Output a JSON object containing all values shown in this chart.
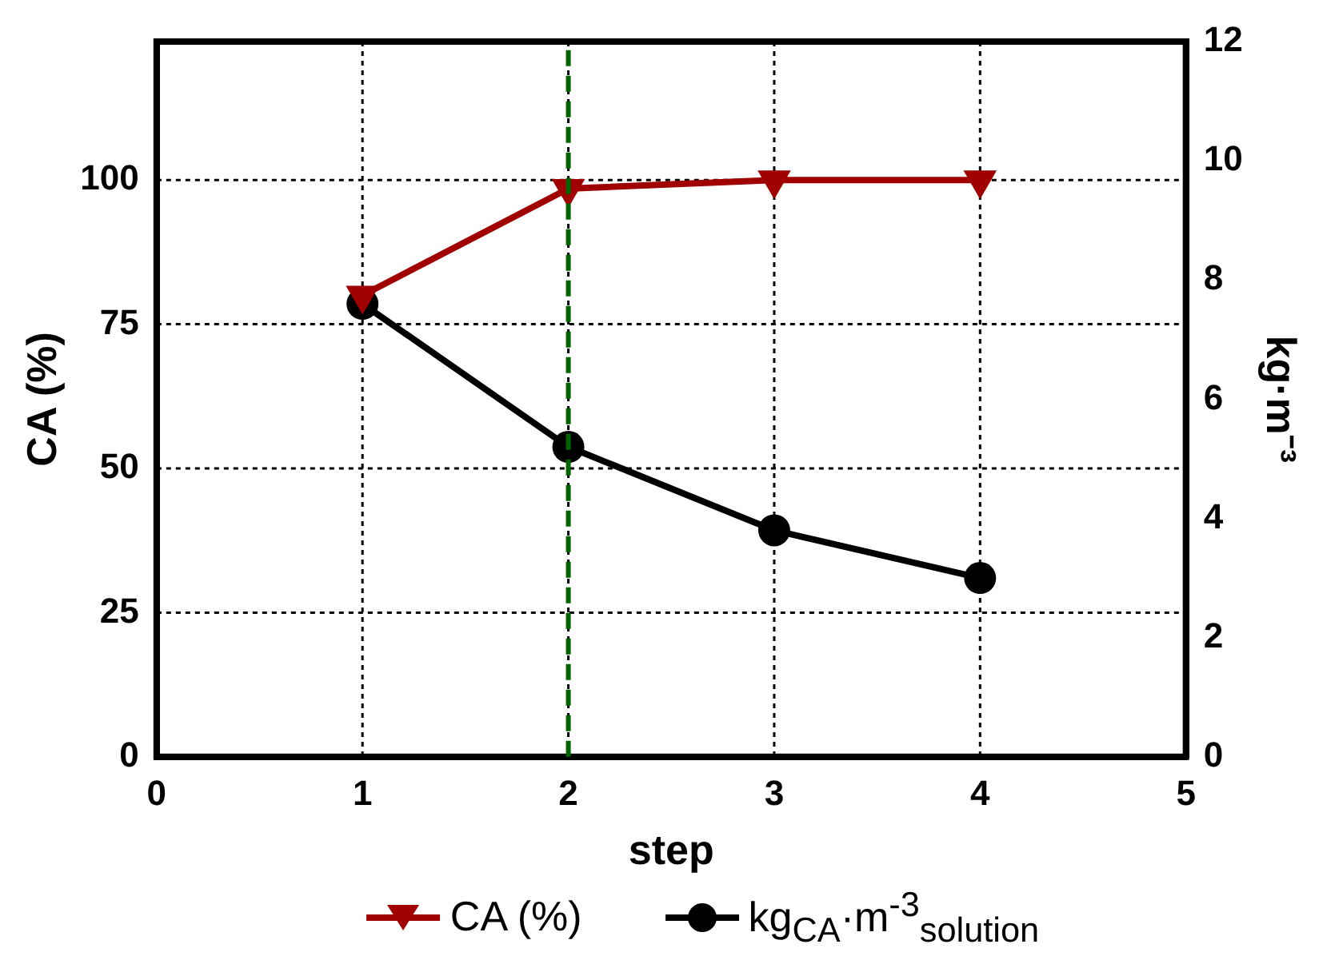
{
  "chart_data": {
    "type": "line",
    "xlabel": "step",
    "ylabel": "CA (%)",
    "y2label": "kg·m⁻³",
    "x": [
      1,
      2,
      3,
      4
    ],
    "series": [
      {
        "name": "CA (%)",
        "color": "#a00000",
        "values": [
          80,
          98.5,
          100,
          100
        ],
        "marker": "triangle"
      },
      {
        "name": "kg$_{CA}$·m$^{-3}$$_{solution}$",
        "color": "#000000",
        "values": [
          7.6,
          5.2,
          3.8,
          3.0
        ],
        "axis": "y2",
        "marker": "circle"
      }
    ],
    "xlim": [
      0,
      5
    ],
    "xticks": [
      0,
      1,
      2,
      3,
      4,
      5
    ],
    "ylim": [
      0,
      124
    ],
    "yticks": [
      0,
      25,
      50,
      75,
      100
    ],
    "y2lim": [
      0,
      12
    ],
    "y2ticks": [
      0,
      2,
      4,
      6,
      8,
      10,
      12
    ],
    "ref_lines": [
      {
        "axis": "x",
        "value": 2,
        "color": "#006400",
        "line_style": "dashed"
      }
    ],
    "grid": true,
    "legend": "bottom",
    "line_style": "solid"
  }
}
